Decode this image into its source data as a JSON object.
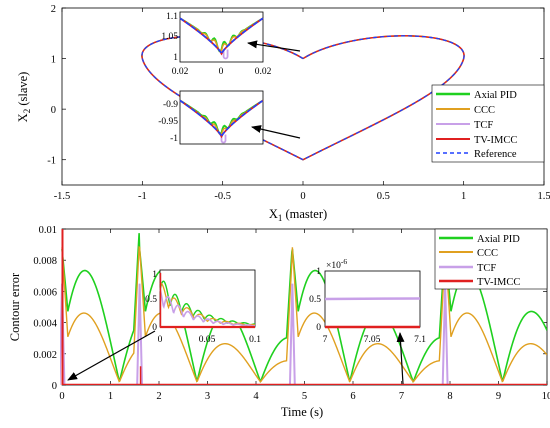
{
  "colors": {
    "axial_pid": "#1fd01f",
    "ccc": "#e0a020",
    "tcf": "#c8a0e8",
    "tv_imcc": "#e02020",
    "reference": "#2040ff"
  },
  "chart_data": [
    {
      "type": "line",
      "title": "",
      "xlabel": "X1 (master)",
      "ylabel": "X2 (slave)",
      "xlabel_main": "X",
      "xlabel_sub": "1",
      "xlabel_rest": " (master)",
      "ylabel_main": "X",
      "ylabel_sub": "2",
      "ylabel_rest": " (slave)",
      "xlim": [
        -1.5,
        1.5
      ],
      "ylim": [
        -1.5,
        2
      ],
      "xticks": [
        -1.5,
        -1,
        -0.5,
        0,
        0.5,
        1,
        1.5
      ],
      "xtick_labels": [
        "-1.5",
        "-1",
        "-0.5",
        "0",
        "0.5",
        "1",
        "1.5"
      ],
      "yticks": [
        -1,
        0,
        1,
        2
      ],
      "ytick_labels": [
        "-1",
        "0",
        "1",
        "2"
      ],
      "legend_position": "bottom-right",
      "series": [
        {
          "name": "Axial PID",
          "style": "solid"
        },
        {
          "name": "CCC",
          "style": "solid"
        },
        {
          "name": "TCF",
          "style": "solid"
        },
        {
          "name": "TV-IMCC",
          "style": "solid"
        },
        {
          "name": "Reference",
          "style": "dashed"
        }
      ],
      "path_description": "heart-shaped closed contour through (0,1), (-1,1), (0,-1), (1,1)",
      "insets": [
        {
          "xlim": [
            -0.02,
            0.02
          ],
          "ylim": [
            0.98,
            1.1
          ],
          "xtick_labels": [
            "0.02",
            "0",
            "0.02"
          ],
          "ytick_labels": [
            "1.1",
            "1.05",
            "1"
          ]
        },
        {
          "xlim": [
            -0.02,
            0.02
          ],
          "ylim": [
            -1.02,
            -0.88
          ],
          "xtick_labels": [],
          "ytick_labels": [
            "-0.9",
            "-0.95",
            "-1"
          ]
        }
      ]
    },
    {
      "type": "line",
      "title": "",
      "xlabel": "Time (s)",
      "ylabel": "Contour error",
      "xlim": [
        0,
        10
      ],
      "ylim": [
        0,
        0.01
      ],
      "xticks": [
        0,
        1,
        2,
        3,
        4,
        5,
        6,
        7,
        8,
        9,
        10
      ],
      "xtick_labels": [
        "0",
        "1",
        "2",
        "3",
        "4",
        "5",
        "6",
        "7",
        "8",
        "9",
        "10"
      ],
      "yticks": [
        0,
        0.002,
        0.004,
        0.006,
        0.008,
        0.01
      ],
      "ytick_labels": [
        "0",
        "0.002",
        "0.004",
        "0.006",
        "0.008",
        "0.01"
      ],
      "legend_position": "top-right",
      "series": [
        {
          "name": "Axial PID"
        },
        {
          "name": "CCC"
        },
        {
          "name": "TCF"
        },
        {
          "name": "TV-IMCC"
        }
      ],
      "insets": [
        {
          "xlim": [
            0,
            0.1
          ],
          "ylim": [
            0,
            0.001
          ],
          "xtick_labels": [
            "0",
            "0.05",
            "0.1"
          ],
          "ytick_labels": [
            "1",
            "0.5",
            "0"
          ]
        },
        {
          "xlim": [
            7,
            7.1
          ],
          "ylim": [
            0,
            1e-06
          ],
          "scale_label": "×10",
          "scale_exp": "-6",
          "xtick_labels": [
            "7",
            "7.05",
            "7.1"
          ],
          "ytick_labels": [
            "1",
            "0.5",
            "0"
          ],
          "tcf_level": 5e-07,
          "tv_imcc_level": 0
        }
      ]
    }
  ]
}
